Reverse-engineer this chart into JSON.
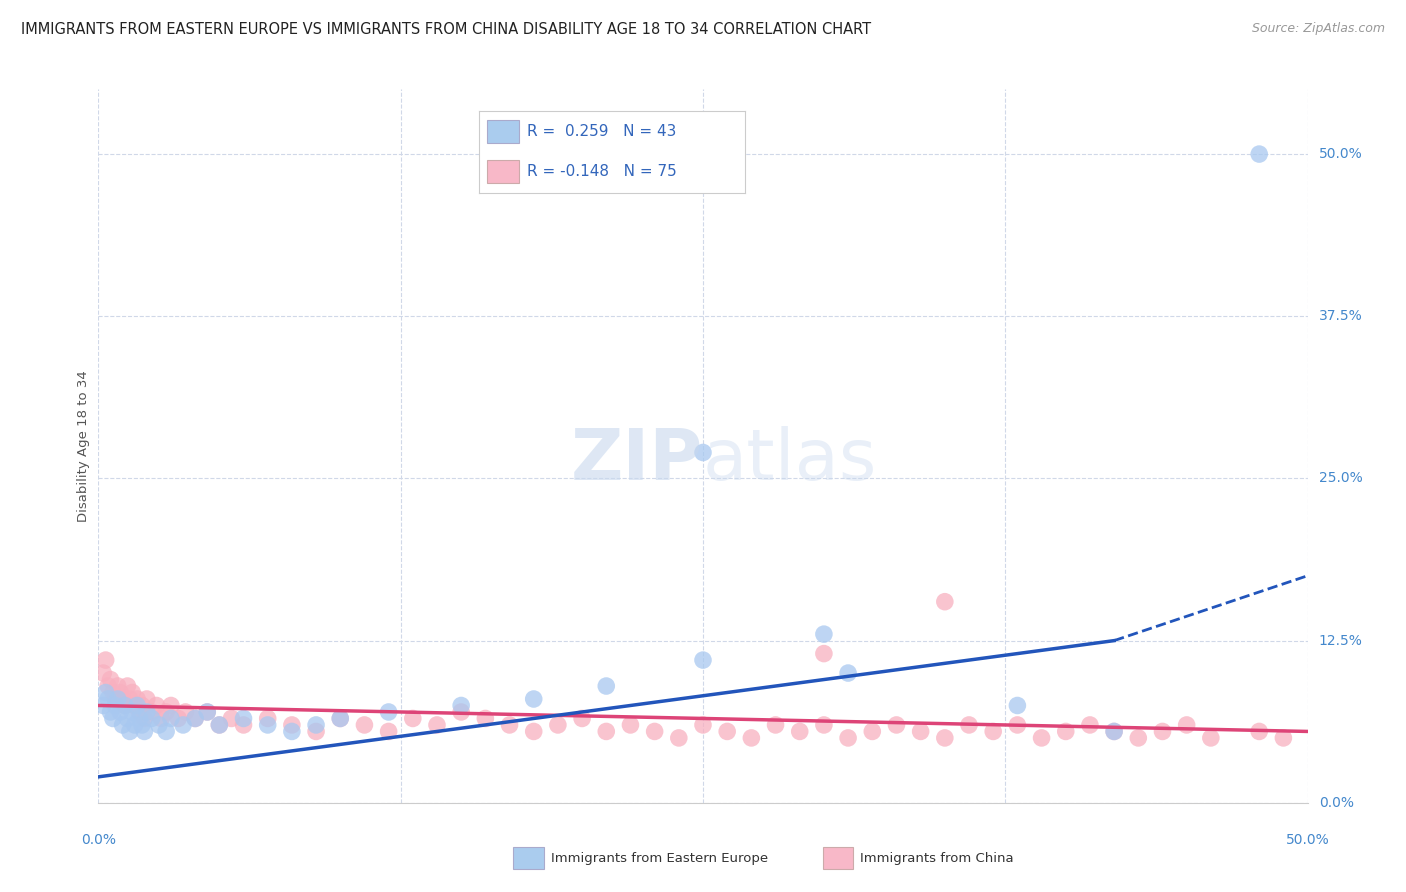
{
  "title": "IMMIGRANTS FROM EASTERN EUROPE VS IMMIGRANTS FROM CHINA DISABILITY AGE 18 TO 34 CORRELATION CHART",
  "source": "Source: ZipAtlas.com",
  "ylabel": "Disability Age 18 to 34",
  "legend_blue_label": "Immigrants from Eastern Europe",
  "legend_pink_label": "Immigrants from China",
  "r_blue": 0.259,
  "n_blue": 43,
  "r_pink": -0.148,
  "n_pink": 75,
  "blue_color": "#a8c8f0",
  "pink_color": "#f8b0c0",
  "blue_line_color": "#2255bb",
  "pink_line_color": "#dd4477",
  "title_fontsize": 10.5,
  "source_fontsize": 9,
  "legend_box_color_blue": "#aaccee",
  "legend_box_color_pink": "#f8b8c8",
  "background_color": "#ffffff",
  "grid_color": "#d0d8e8",
  "y_tick_values": [
    0.0,
    0.125,
    0.25,
    0.375,
    0.5
  ],
  "y_tick_labels": [
    "0.0%",
    "12.5%",
    "25.0%",
    "37.5%",
    "50.0%"
  ],
  "x_tick_values": [
    0.0,
    0.125,
    0.25,
    0.375,
    0.5
  ],
  "xlim": [
    0.0,
    0.5
  ],
  "ylim": [
    0.0,
    0.55
  ],
  "blue_line_x0": 0.0,
  "blue_line_y0": 0.02,
  "blue_line_x1": 0.42,
  "blue_line_y1": 0.125,
  "blue_line_dash_x1": 0.5,
  "blue_line_dash_y1": 0.175,
  "pink_line_x0": 0.0,
  "pink_line_y0": 0.075,
  "pink_line_x1": 0.5,
  "pink_line_y1": 0.055,
  "blue_scatter_x": [
    0.002,
    0.003,
    0.004,
    0.005,
    0.006,
    0.007,
    0.008,
    0.009,
    0.01,
    0.011,
    0.012,
    0.013,
    0.014,
    0.015,
    0.016,
    0.017,
    0.018,
    0.019,
    0.02,
    0.022,
    0.025,
    0.028,
    0.03,
    0.035,
    0.04,
    0.045,
    0.05,
    0.06,
    0.07,
    0.08,
    0.09,
    0.1,
    0.12,
    0.15,
    0.18,
    0.21,
    0.25,
    0.31,
    0.38,
    0.42,
    0.25,
    0.3,
    0.48
  ],
  "blue_scatter_y": [
    0.075,
    0.085,
    0.08,
    0.07,
    0.065,
    0.075,
    0.08,
    0.07,
    0.06,
    0.075,
    0.065,
    0.055,
    0.07,
    0.06,
    0.075,
    0.065,
    0.06,
    0.055,
    0.07,
    0.065,
    0.06,
    0.055,
    0.065,
    0.06,
    0.065,
    0.07,
    0.06,
    0.065,
    0.06,
    0.055,
    0.06,
    0.065,
    0.07,
    0.075,
    0.08,
    0.09,
    0.27,
    0.1,
    0.075,
    0.055,
    0.11,
    0.13,
    0.5
  ],
  "pink_scatter_x": [
    0.002,
    0.003,
    0.004,
    0.005,
    0.006,
    0.007,
    0.008,
    0.009,
    0.01,
    0.011,
    0.012,
    0.013,
    0.014,
    0.015,
    0.016,
    0.017,
    0.018,
    0.019,
    0.02,
    0.022,
    0.024,
    0.026,
    0.028,
    0.03,
    0.033,
    0.036,
    0.04,
    0.045,
    0.05,
    0.055,
    0.06,
    0.07,
    0.08,
    0.09,
    0.1,
    0.11,
    0.12,
    0.13,
    0.14,
    0.15,
    0.16,
    0.17,
    0.18,
    0.19,
    0.2,
    0.21,
    0.22,
    0.23,
    0.24,
    0.25,
    0.26,
    0.27,
    0.28,
    0.29,
    0.3,
    0.31,
    0.32,
    0.33,
    0.34,
    0.35,
    0.36,
    0.37,
    0.38,
    0.39,
    0.4,
    0.41,
    0.42,
    0.43,
    0.44,
    0.45,
    0.46,
    0.48,
    0.49,
    0.35,
    0.3
  ],
  "pink_scatter_y": [
    0.1,
    0.11,
    0.09,
    0.095,
    0.085,
    0.08,
    0.09,
    0.085,
    0.08,
    0.075,
    0.09,
    0.08,
    0.085,
    0.075,
    0.08,
    0.07,
    0.075,
    0.065,
    0.08,
    0.07,
    0.075,
    0.065,
    0.07,
    0.075,
    0.065,
    0.07,
    0.065,
    0.07,
    0.06,
    0.065,
    0.06,
    0.065,
    0.06,
    0.055,
    0.065,
    0.06,
    0.055,
    0.065,
    0.06,
    0.07,
    0.065,
    0.06,
    0.055,
    0.06,
    0.065,
    0.055,
    0.06,
    0.055,
    0.05,
    0.06,
    0.055,
    0.05,
    0.06,
    0.055,
    0.06,
    0.05,
    0.055,
    0.06,
    0.055,
    0.05,
    0.06,
    0.055,
    0.06,
    0.05,
    0.055,
    0.06,
    0.055,
    0.05,
    0.055,
    0.06,
    0.05,
    0.055,
    0.05,
    0.155,
    0.115
  ]
}
